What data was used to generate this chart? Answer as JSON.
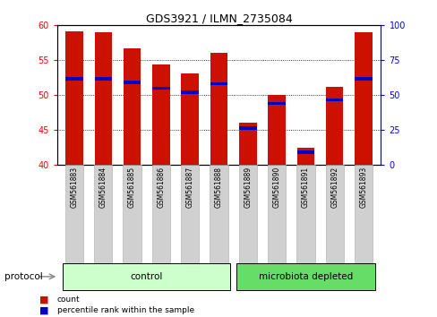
{
  "title": "GDS3921 / ILMN_2735084",
  "samples": [
    "GSM561883",
    "GSM561884",
    "GSM561885",
    "GSM561886",
    "GSM561887",
    "GSM561888",
    "GSM561889",
    "GSM561890",
    "GSM561891",
    "GSM561892",
    "GSM561893"
  ],
  "count_values": [
    59.2,
    59.0,
    56.7,
    54.4,
    53.1,
    56.1,
    46.0,
    50.0,
    42.5,
    51.2,
    59.0
  ],
  "percentile_values": [
    52.3,
    52.3,
    51.8,
    51.0,
    50.4,
    51.6,
    45.3,
    48.8,
    41.8,
    49.3,
    52.3
  ],
  "groups": [
    "control",
    "control",
    "control",
    "control",
    "control",
    "control",
    "microbiota depleted",
    "microbiota depleted",
    "microbiota depleted",
    "microbiota depleted",
    "microbiota depleted"
  ],
  "control_color": "#ccffcc",
  "microbiota_color": "#66dd66",
  "bar_color": "#cc1100",
  "blue_color": "#0000cc",
  "ylim_left": [
    40,
    60
  ],
  "ylim_right": [
    0,
    100
  ],
  "yticks_left": [
    40,
    45,
    50,
    55,
    60
  ],
  "yticks_right": [
    0,
    25,
    50,
    75,
    100
  ],
  "bar_width": 0.6,
  "bg_color": "#ffffff",
  "label_box_color": "#d0d0d0"
}
